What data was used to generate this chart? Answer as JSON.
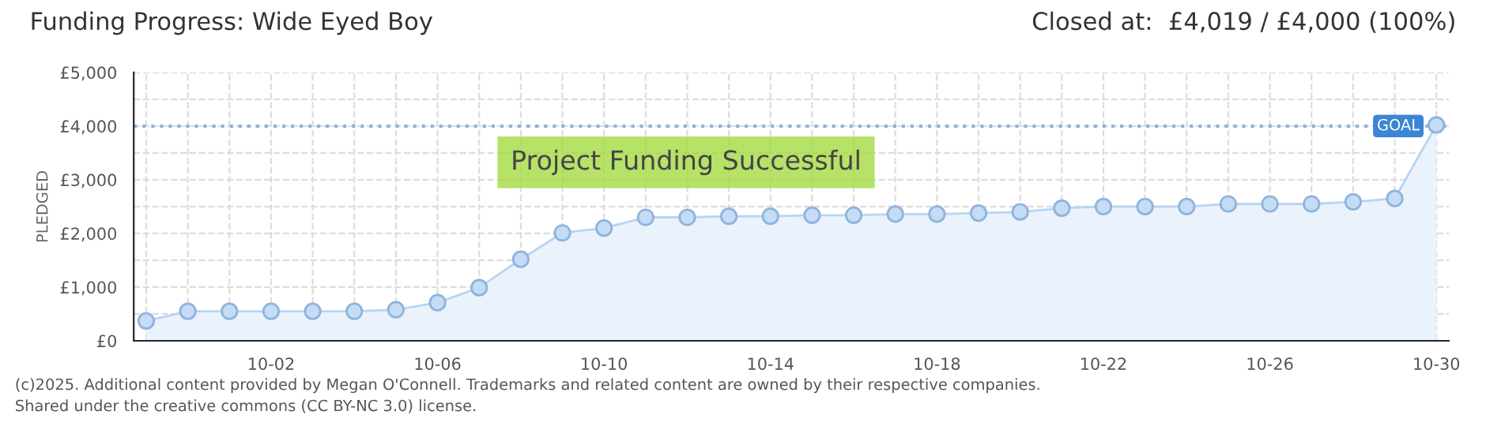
{
  "chart_data": {
    "type": "area",
    "title": "Funding Progress: Wide Eyed Boy",
    "subtitle": "Closed at:  £4,019 / £4,000 (100%)",
    "ylabel": "PLEDGED",
    "categories": [
      null,
      null,
      null,
      "10-02",
      null,
      null,
      null,
      "10-06",
      null,
      null,
      null,
      "10-10",
      null,
      null,
      null,
      "10-14",
      null,
      null,
      null,
      "10-18",
      null,
      null,
      null,
      "10-22",
      null,
      null,
      null,
      "10-26",
      null,
      null,
      null,
      "10-30"
    ],
    "series": [
      {
        "color": "#b8d4f2",
        "values": [
          370,
          550,
          550,
          550,
          550,
          550,
          580,
          710,
          990,
          1520,
          2010,
          2100,
          2300,
          2300,
          2320,
          2320,
          2340,
          2340,
          2360,
          2360,
          2380,
          2400,
          2470,
          2500,
          2500,
          2500,
          2550,
          2550,
          2550,
          2590,
          2650,
          4020
        ]
      }
    ],
    "ylim": [
      0,
      5000
    ],
    "yticks": [
      {
        "value": 0,
        "label": "£0"
      },
      {
        "value": 500,
        "label": null
      },
      {
        "value": 1000,
        "label": "£1,000"
      },
      {
        "value": 1500,
        "label": null
      },
      {
        "value": 2000,
        "label": "£2,000"
      },
      {
        "value": 2500,
        "label": null
      },
      {
        "value": 3000,
        "label": "£3,000"
      },
      {
        "value": 3500,
        "label": null
      },
      {
        "value": 4000,
        "label": "£4,000"
      },
      {
        "value": 4500,
        "label": null
      },
      {
        "value": 5000,
        "label": "£5,000"
      }
    ],
    "ref_lines": [
      {
        "axis": "y",
        "value": 4000,
        "label": "GOAL",
        "color": "#8fb3dd",
        "line_style": "dotted"
      }
    ],
    "annotations": [
      "Project Funding Successful",
      "(c)2025. Additional content provided by Megan O'Connell. Trademarks and related content are owned by their respective companies.",
      "Shared under the creative commons (CC BY-NC 3.0) license."
    ],
    "grid": true,
    "marker": "circle",
    "line_style": "solid",
    "legend": false
  }
}
